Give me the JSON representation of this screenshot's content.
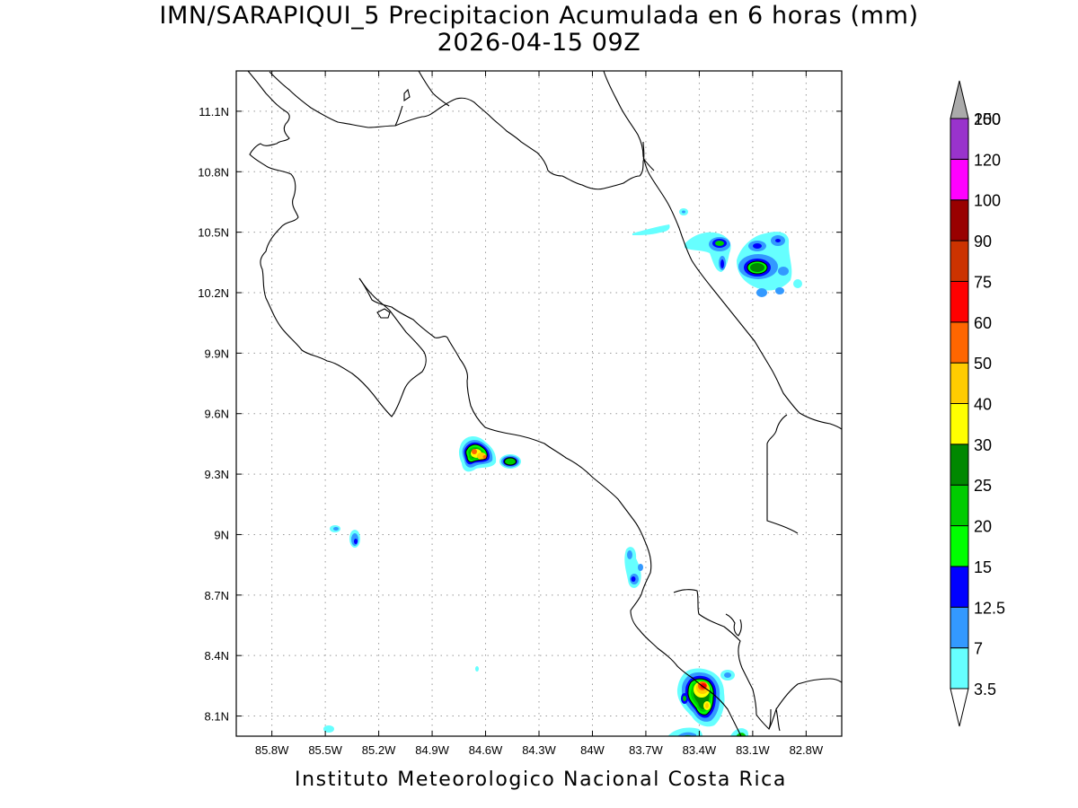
{
  "title": {
    "line1": "IMN/SARAPIQUI_5 Precipitacion Acumulada en 6 horas (mm)",
    "line2": "2026-04-15 09Z"
  },
  "footer": "Instituto Meteorologico Nacional Costa Rica",
  "map": {
    "lon_range": [
      -86.0,
      -82.6
    ],
    "lat_range": [
      8.0,
      11.3
    ],
    "lon_ticks": [
      {
        "value": -85.8,
        "label": "85.8W"
      },
      {
        "value": -85.5,
        "label": "85.5W"
      },
      {
        "value": -85.2,
        "label": "85.2W"
      },
      {
        "value": -84.9,
        "label": "84.9W"
      },
      {
        "value": -84.6,
        "label": "84.6W"
      },
      {
        "value": -84.3,
        "label": "84.3W"
      },
      {
        "value": -84.0,
        "label": "84W"
      },
      {
        "value": -83.7,
        "label": "83.7W"
      },
      {
        "value": -83.4,
        "label": "83.4W"
      },
      {
        "value": -83.1,
        "label": "83.1W"
      },
      {
        "value": -82.8,
        "label": "82.8W"
      }
    ],
    "lat_ticks": [
      {
        "value": 11.1,
        "label": "11.1N"
      },
      {
        "value": 10.8,
        "label": "10.8N"
      },
      {
        "value": 10.5,
        "label": "10.5N"
      },
      {
        "value": 10.2,
        "label": "10.2N"
      },
      {
        "value": 9.9,
        "label": "9.9N"
      },
      {
        "value": 9.6,
        "label": "9.6N"
      },
      {
        "value": 9.3,
        "label": "9.3N"
      },
      {
        "value": 9.0,
        "label": "9N"
      },
      {
        "value": 8.7,
        "label": "8.7N"
      },
      {
        "value": 8.4,
        "label": "8.4N"
      },
      {
        "value": 8.1,
        "label": "8.1N"
      }
    ],
    "grid": "dotted"
  },
  "colorbar": {
    "levels": [
      {
        "label": "3.5",
        "color": "#66ffff"
      },
      {
        "label": "7",
        "color": "#3399ff"
      },
      {
        "label": "12.5",
        "color": "#0000ff"
      },
      {
        "label": "15",
        "color": "#00ff00"
      },
      {
        "label": "20",
        "color": "#00cc00"
      },
      {
        "label": "25",
        "color": "#008800"
      },
      {
        "label": "30",
        "color": "#ffff00"
      },
      {
        "label": "40",
        "color": "#ffcc00"
      },
      {
        "label": "50",
        "color": "#ff6600"
      },
      {
        "label": "60",
        "color": "#ff0000"
      },
      {
        "label": "75",
        "color": "#cc3300"
      },
      {
        "label": "90",
        "color": "#990000"
      },
      {
        "label": "100",
        "color": "#ff00ff"
      },
      {
        "label": "120",
        "color": "#9933cc"
      },
      {
        "label": "150",
        "color": "#f0f0f0"
      },
      {
        "label": "200",
        "color": "#aaaaaa"
      }
    ]
  },
  "precip_cells": [
    {
      "lon": -84.62,
      "lat": 9.41,
      "peak": "40"
    },
    {
      "lon": -84.43,
      "lat": 9.36,
      "peak": "20"
    },
    {
      "lon": -85.3,
      "lat": 8.98,
      "peak": "12.5"
    },
    {
      "lon": -85.43,
      "lat": 9.03,
      "peak": "3.5"
    },
    {
      "lon": -83.7,
      "lat": 8.83,
      "peak": "12.5"
    },
    {
      "lon": -83.33,
      "lat": 8.23,
      "peak": "60"
    },
    {
      "lon": -83.0,
      "lat": 10.32,
      "peak": "30"
    },
    {
      "lon": -83.22,
      "lat": 10.42,
      "peak": "20"
    },
    {
      "lon": -82.92,
      "lat": 10.43,
      "peak": "12.5"
    },
    {
      "lon": -83.5,
      "lat": 10.46,
      "peak": "3.5"
    }
  ]
}
